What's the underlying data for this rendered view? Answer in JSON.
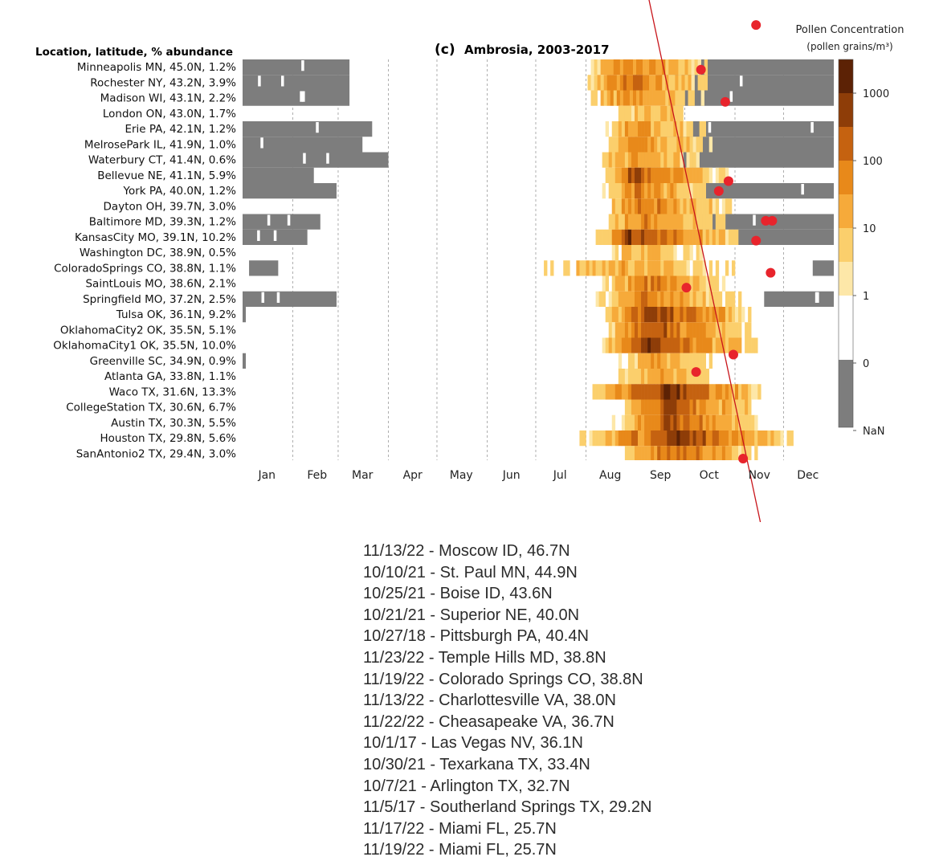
{
  "chart_data": {
    "type": "heatmap",
    "panel_label": "(c)",
    "title": "Ambrosia, 2003-2017",
    "row_header": "Location, latitude, % abundance",
    "colorbar_title": "Pollen Concentration",
    "colorbar_units": "(pollen grains/m³)",
    "colorbar_ticks": [
      "1000",
      "100",
      "10",
      "1",
      "0",
      "NaN"
    ],
    "colors": {
      "nan": "#7d7d7d",
      "zero": "#ffffff",
      "scale": [
        "#fde7a8",
        "#fbcf6c",
        "#f6aa3a",
        "#e8891a",
        "#c56210",
        "#8e3d08",
        "#5c2205"
      ],
      "sighting_points": "#e8242c",
      "trend_line": "#c8151b"
    },
    "months": [
      "Jan",
      "Feb",
      "Mar",
      "Apr",
      "May",
      "Jun",
      "Jul",
      "Aug",
      "Sep",
      "Oct",
      "Nov",
      "Dec"
    ],
    "locations": [
      {
        "label": "Minneapolis MN, 45.0N,  1.2%",
        "season": [
          213,
          290
        ],
        "peak": 235,
        "intensity": 0.55,
        "nan": [
          [
            0,
            66
          ],
          [
            258,
            365
          ]
        ]
      },
      {
        "label": "Rochester NY, 43.2N,  3.9%",
        "season": [
          213,
          288
        ],
        "peak": 236,
        "intensity": 0.62,
        "nan": [
          [
            0,
            66
          ],
          [
            266,
            365
          ]
        ]
      },
      {
        "label": "Madison WI, 43.1N,  2.2%",
        "season": [
          213,
          288
        ],
        "peak": 235,
        "intensity": 0.5,
        "nan": [
          [
            0,
            66
          ],
          [
            262,
            365
          ]
        ]
      },
      {
        "label": "London ON, 43.0N,  1.7%",
        "season": [
          228,
          276
        ],
        "peak": 245,
        "intensity": 0.3,
        "nan": []
      },
      {
        "label": "Erie PA, 42.1N,  1.2%",
        "season": [
          224,
          288
        ],
        "peak": 240,
        "intensity": 0.45,
        "nan": [
          [
            0,
            80
          ],
          [
            254,
            365
          ]
        ]
      },
      {
        "label": "MelrosePark IL, 41.9N,  1.0%",
        "season": [
          222,
          290
        ],
        "peak": 242,
        "intensity": 0.48,
        "nan": [
          [
            0,
            74
          ],
          [
            262,
            365
          ]
        ]
      },
      {
        "label": "Waterbury CT, 41.4N,  0.6%",
        "season": [
          218,
          282
        ],
        "peak": 240,
        "intensity": 0.4,
        "nan": [
          [
            0,
            90
          ],
          [
            246,
            365
          ]
        ]
      },
      {
        "label": "Bellevue NE, 41.1N,  5.9%",
        "season": [
          222,
          300
        ],
        "peak": 240,
        "intensity": 0.72,
        "nan": [
          [
            0,
            44
          ]
        ]
      },
      {
        "label": "York PA, 40.0N,  1.2%",
        "season": [
          222,
          288
        ],
        "peak": 244,
        "intensity": 0.55,
        "nan": [
          [
            0,
            58
          ],
          [
            270,
            365
          ]
        ]
      },
      {
        "label": "Dayton OH, 39.7N,  3.0%",
        "season": [
          222,
          302
        ],
        "peak": 244,
        "intensity": 0.58,
        "nan": []
      },
      {
        "label": "Baltimore MD, 39.3N,  1.2%",
        "season": [
          222,
          300
        ],
        "peak": 244,
        "intensity": 0.5,
        "nan": [
          [
            0,
            48
          ],
          [
            280,
            365
          ]
        ]
      },
      {
        "label": "KansasCity MO, 39.1N, 10.2%",
        "season": [
          218,
          308
        ],
        "peak": 238,
        "intensity": 0.85,
        "nan": [
          [
            0,
            40
          ],
          [
            290,
            365
          ]
        ]
      },
      {
        "label": "Washington DC, 38.9N,  0.5%",
        "season": [
          226,
          284
        ],
        "peak": 246,
        "intensity": 0.3,
        "nan": []
      },
      {
        "label": "ColoradoSprings CO, 38.8N,  1.1%",
        "season": [
          182,
          304
        ],
        "peak": 240,
        "intensity": 0.35,
        "nan": [
          [
            4,
            22
          ],
          [
            352,
            365
          ]
        ]
      },
      {
        "label": "SaintLouis MO, 38.6N,  2.1%",
        "season": [
          222,
          300
        ],
        "peak": 246,
        "intensity": 0.58,
        "nan": []
      },
      {
        "label": "Springfield MO, 37.2N,  2.5%",
        "season": [
          218,
          308
        ],
        "peak": 246,
        "intensity": 0.55,
        "nan": [
          [
            0,
            58
          ],
          [
            322,
            365
          ]
        ]
      },
      {
        "label": "Tulsa OK, 36.1N,  9.2%",
        "season": [
          222,
          316
        ],
        "peak": 250,
        "intensity": 0.85,
        "nan": [
          [
            0,
            2
          ]
        ]
      },
      {
        "label": "OklahomaCity2 OK, 35.5N,  5.1%",
        "season": [
          222,
          316
        ],
        "peak": 250,
        "intensity": 0.72,
        "nan": []
      },
      {
        "label": "OklahomaCity1 OK, 35.5N, 10.0%",
        "season": [
          222,
          318
        ],
        "peak": 250,
        "intensity": 0.85,
        "nan": []
      },
      {
        "label": "Greenville SC, 34.9N,  0.9%",
        "season": [
          232,
          292
        ],
        "peak": 252,
        "intensity": 0.35,
        "nan": [
          [
            0,
            2
          ]
        ]
      },
      {
        "label": "Atlanta GA, 33.8N,  1.1%",
        "season": [
          232,
          294
        ],
        "peak": 254,
        "intensity": 0.45,
        "nan": []
      },
      {
        "label": "Waco TX, 31.6N, 13.3%",
        "season": [
          212,
          322
        ],
        "peak": 262,
        "intensity": 0.9,
        "nan": []
      },
      {
        "label": "CollegeStation TX, 30.6N,  6.7%",
        "season": [
          234,
          318
        ],
        "peak": 262,
        "intensity": 0.78,
        "nan": []
      },
      {
        "label": "Austin TX, 30.3N,  5.5%",
        "season": [
          228,
          318
        ],
        "peak": 262,
        "intensity": 0.72,
        "nan": []
      },
      {
        "label": "Houston TX, 29.8N,  5.6%",
        "season": [
          208,
          340
        ],
        "peak": 270,
        "intensity": 0.85,
        "nan": []
      },
      {
        "label": "SanAntonio2 TX, 29.4N,  3.0%",
        "season": [
          232,
          318
        ],
        "peak": 266,
        "intensity": 0.68,
        "nan": []
      }
    ],
    "sighting_points": [
      {
        "day_of_year": 317,
        "latitude": 46.7
      },
      {
        "day_of_year": 283,
        "latitude": 44.9
      },
      {
        "day_of_year": 298,
        "latitude": 43.6
      },
      {
        "day_of_year": 294,
        "latitude": 40.0
      },
      {
        "day_of_year": 300,
        "latitude": 40.4
      },
      {
        "day_of_year": 327,
        "latitude": 38.8
      },
      {
        "day_of_year": 323,
        "latitude": 38.8
      },
      {
        "day_of_year": 317,
        "latitude": 38.0
      },
      {
        "day_of_year": 326,
        "latitude": 36.7
      },
      {
        "day_of_year": 274,
        "latitude": 36.1
      },
      {
        "day_of_year": 303,
        "latitude": 33.4
      },
      {
        "day_of_year": 280,
        "latitude": 32.7
      },
      {
        "day_of_year": 309,
        "latitude": 29.2
      },
      {
        "day_of_year": 321,
        "latitude": 25.7
      },
      {
        "day_of_year": 323,
        "latitude": 25.7
      }
    ],
    "trend_line": {
      "start": {
        "day_of_year": 250,
        "latitude": 48.0
      },
      "end": {
        "day_of_year": 325,
        "latitude": 25.0
      }
    }
  },
  "sightings": [
    "11/13/22 - Moscow ID, 46.7N",
    "10/10/21 - St. Paul MN, 44.9N",
    "10/25/21 - Boise ID, 43.6N",
    "10/21/21 - Superior NE, 40.0N",
    "10/27/18 - Pittsburgh PA, 40.4N",
    "11/23/22 - Temple Hills MD, 38.8N",
    "11/19/22 - Colorado Springs CO, 38.8N",
    "11/13/22 - Charlottesville VA, 38.0N",
    "11/22/22 - Cheasapeake VA, 36.7N",
    "10/1/17 - Las Vegas NV, 36.1N",
    "10/30/21 - Texarkana TX, 33.4N",
    "10/7/21 - Arlington TX, 32.7N",
    "11/5/17 - Southerland Springs TX, 29.2N",
    "11/17/22 - Miami FL, 25.7N",
    "11/19/22 - Miami FL, 25.7N"
  ]
}
